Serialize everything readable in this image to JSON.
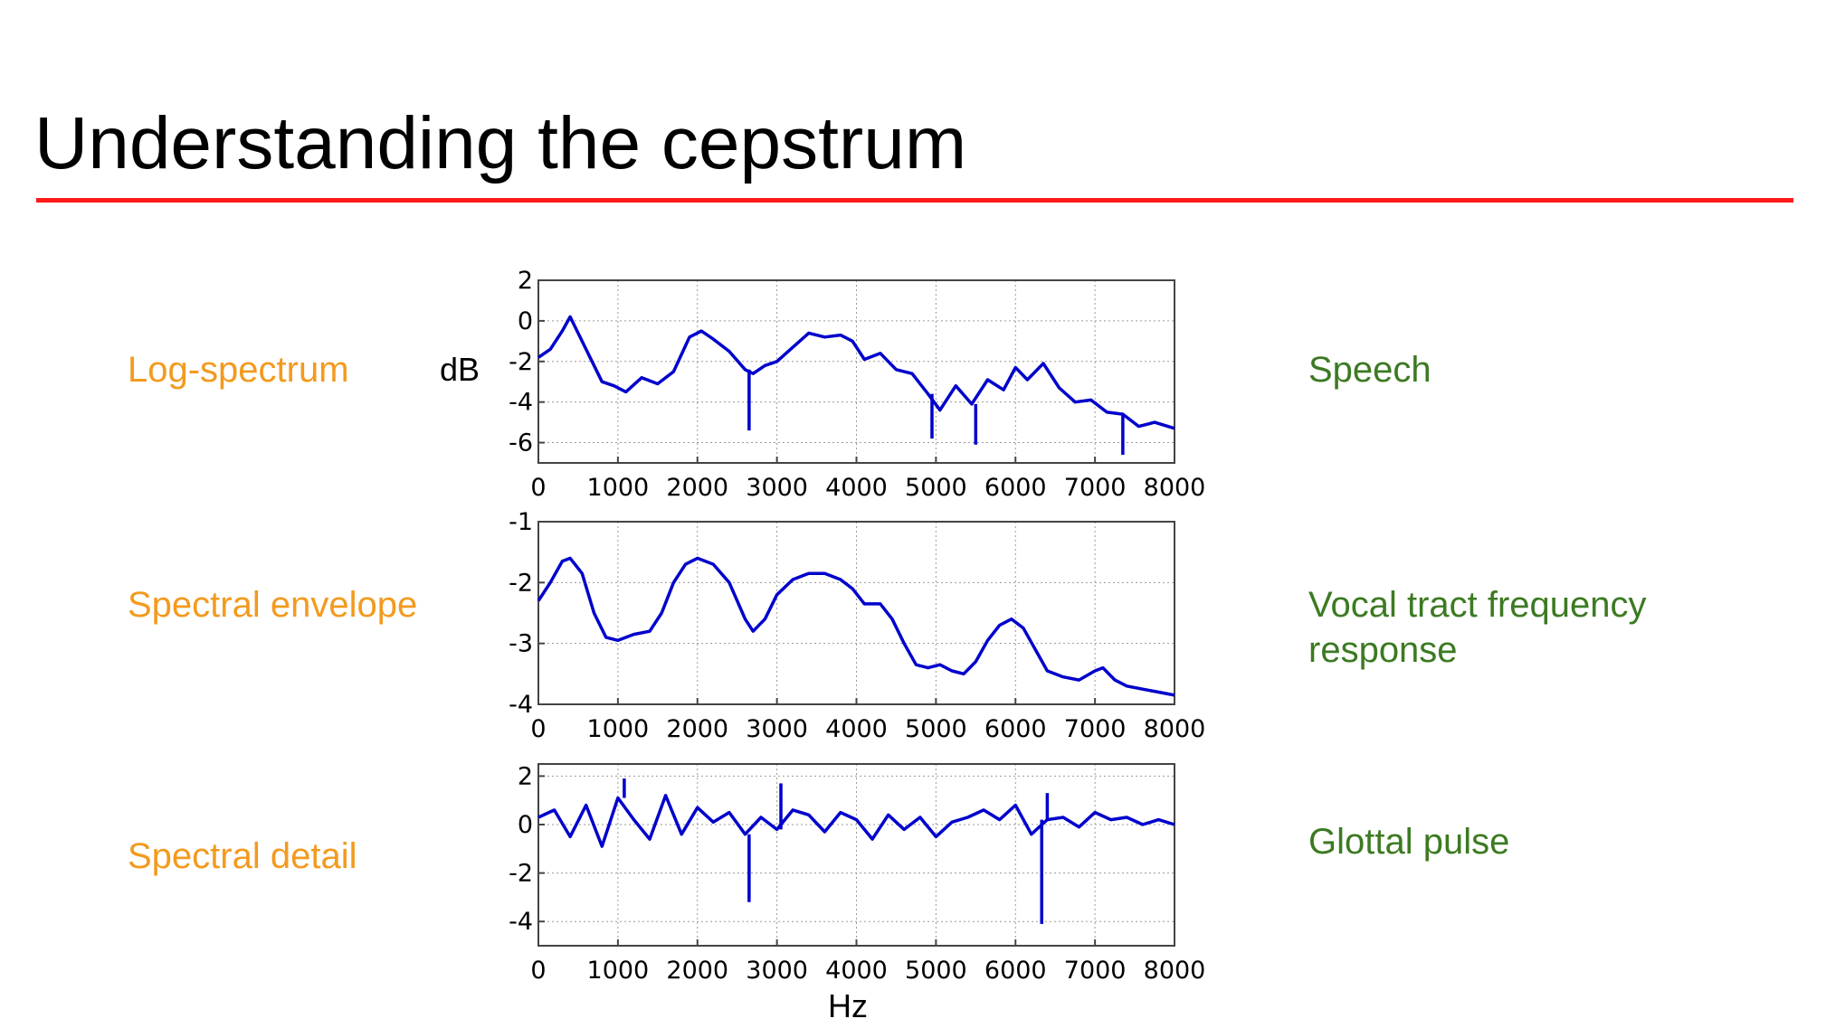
{
  "title": "Understanding the cepstrum",
  "colors": {
    "rule": "#ff1a1a",
    "left_labels": "#f39a1e",
    "right_labels": "#3c7a22",
    "series": "#0000cc"
  },
  "left_labels": [
    "Log-spectrum",
    "Spectral envelope",
    "Spectral detail"
  ],
  "right_labels": [
    "Speech",
    "Vocal tract frequency response",
    "Glottal pulse"
  ],
  "ylabel": "dB",
  "xlabel": "Hz",
  "chart_data": [
    {
      "type": "line",
      "xlim": [
        0,
        8000
      ],
      "ylim": [
        -7,
        2
      ],
      "x_ticks": [
        0,
        1000,
        2000,
        3000,
        4000,
        5000,
        6000,
        7000,
        8000
      ],
      "y_ticks": [
        2,
        0,
        -2,
        -4,
        -6
      ],
      "grid": true,
      "series": [
        {
          "x": [
            0,
            150,
            300,
            400,
            500,
            650,
            800,
            950,
            1100,
            1300,
            1500,
            1700,
            1900,
            2050,
            2200,
            2400,
            2600,
            2700,
            2850,
            3000,
            3200,
            3400,
            3600,
            3800,
            3950,
            4100,
            4300,
            4500,
            4700,
            4900,
            5050,
            5250,
            5450,
            5650,
            5850,
            6000,
            6150,
            6350,
            6550,
            6750,
            6950,
            7150,
            7350,
            7550,
            7750,
            8000
          ],
          "values": [
            -1.8,
            -1.4,
            -0.5,
            0.2,
            -0.6,
            -1.8,
            -3,
            -3.2,
            -3.5,
            -2.8,
            -3.1,
            -2.5,
            -0.8,
            -0.5,
            -0.9,
            -1.5,
            -2.4,
            -2.6,
            -2.2,
            -2.0,
            -1.3,
            -0.6,
            -0.8,
            -0.7,
            -1.0,
            -1.9,
            -1.6,
            -2.4,
            -2.6,
            -3.6,
            -4.4,
            -3.2,
            -4.1,
            -2.9,
            -3.4,
            -2.3,
            -2.9,
            -2.1,
            -3.3,
            -4.0,
            -3.9,
            -4.5,
            -4.6,
            -5.2,
            -5.0,
            -5.3
          ]
        }
      ],
      "spikes": [
        {
          "x": 2650,
          "y": -5.4
        },
        {
          "x": 4950,
          "y": -5.8
        },
        {
          "x": 5500,
          "y": -6.1
        },
        {
          "x": 7350,
          "y": -6.6
        }
      ]
    },
    {
      "type": "line",
      "xlim": [
        0,
        8000
      ],
      "ylim": [
        -4,
        -1
      ],
      "x_ticks": [
        0,
        1000,
        2000,
        3000,
        4000,
        5000,
        6000,
        7000,
        8000
      ],
      "y_ticks": [
        -1,
        -2,
        -3,
        -4
      ],
      "grid": true,
      "series": [
        {
          "x": [
            0,
            150,
            300,
            400,
            550,
            700,
            850,
            1000,
            1200,
            1400,
            1550,
            1700,
            1850,
            2000,
            2200,
            2400,
            2600,
            2700,
            2850,
            3000,
            3200,
            3400,
            3600,
            3800,
            3950,
            4100,
            4300,
            4450,
            4600,
            4750,
            4900,
            5050,
            5200,
            5350,
            5500,
            5650,
            5800,
            5950,
            6100,
            6250,
            6400,
            6600,
            6800,
            7000,
            7100,
            7250,
            7400,
            7600,
            7800,
            8000
          ],
          "values": [
            -2.3,
            -2.0,
            -1.65,
            -1.6,
            -1.85,
            -2.5,
            -2.9,
            -2.95,
            -2.85,
            -2.8,
            -2.5,
            -2.0,
            -1.7,
            -1.6,
            -1.7,
            -2.0,
            -2.6,
            -2.8,
            -2.6,
            -2.2,
            -1.95,
            -1.85,
            -1.85,
            -1.95,
            -2.1,
            -2.35,
            -2.35,
            -2.6,
            -3.0,
            -3.35,
            -3.4,
            -3.35,
            -3.45,
            -3.5,
            -3.3,
            -2.95,
            -2.7,
            -2.6,
            -2.75,
            -3.1,
            -3.45,
            -3.55,
            -3.6,
            -3.45,
            -3.4,
            -3.6,
            -3.7,
            -3.75,
            -3.8,
            -3.85
          ]
        }
      ]
    },
    {
      "type": "line",
      "xlim": [
        0,
        8000
      ],
      "ylim": [
        -5,
        2.5
      ],
      "x_ticks": [
        0,
        1000,
        2000,
        3000,
        4000,
        5000,
        6000,
        7000,
        8000
      ],
      "y_ticks": [
        2,
        0,
        -2,
        -4
      ],
      "grid": true,
      "series": [
        {
          "x": [
            0,
            200,
            400,
            600,
            800,
            1000,
            1200,
            1400,
            1600,
            1800,
            2000,
            2200,
            2400,
            2600,
            2800,
            3000,
            3200,
            3400,
            3600,
            3800,
            4000,
            4200,
            4400,
            4600,
            4800,
            5000,
            5200,
            5400,
            5600,
            5800,
            6000,
            6200,
            6400,
            6600,
            6800,
            7000,
            7200,
            7400,
            7600,
            7800,
            8000
          ],
          "values": [
            0.3,
            0.6,
            -0.5,
            0.8,
            -0.9,
            1.1,
            0.2,
            -0.6,
            1.2,
            -0.4,
            0.7,
            0.1,
            0.5,
            -0.4,
            0.3,
            -0.2,
            0.6,
            0.4,
            -0.3,
            0.5,
            0.2,
            -0.6,
            0.4,
            -0.2,
            0.3,
            -0.5,
            0.1,
            0.3,
            0.6,
            0.2,
            0.8,
            -0.4,
            0.2,
            0.3,
            -0.1,
            0.5,
            0.2,
            0.3,
            0.0,
            0.2,
            0.0
          ]
        }
      ],
      "spikes": [
        {
          "x": 1080,
          "y": 1.9
        },
        {
          "x": 2650,
          "y": -3.2
        },
        {
          "x": 3050,
          "y": 1.7
        },
        {
          "x": 6330,
          "y": -4.1
        },
        {
          "x": 6400,
          "y": 1.3
        }
      ]
    }
  ]
}
